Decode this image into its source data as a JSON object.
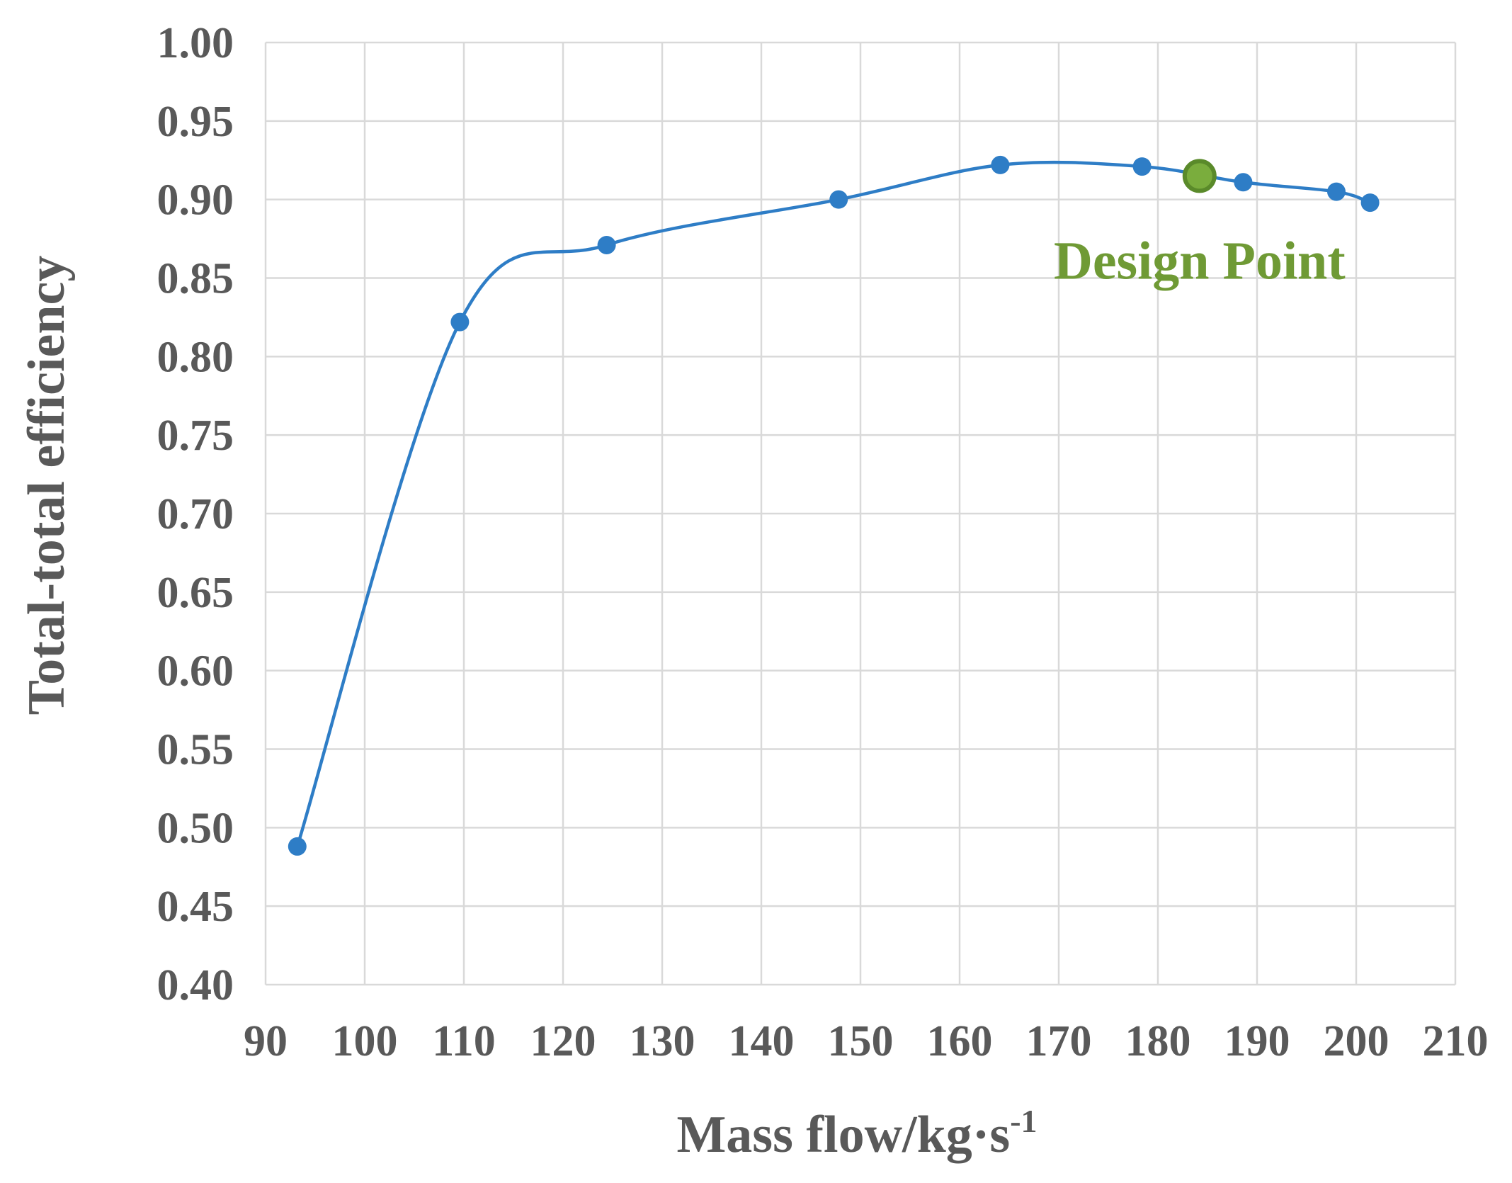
{
  "chart_data": {
    "type": "line",
    "title": "",
    "xlabel_main": "Mass flow/kg·s",
    "xlabel_sup": "-1",
    "ylabel": "Total-total efficiency",
    "xlim": [
      90,
      210
    ],
    "ylim": [
      0.4,
      1.0
    ],
    "x_ticks": [
      90,
      100,
      110,
      120,
      130,
      140,
      150,
      160,
      170,
      180,
      190,
      200,
      210
    ],
    "y_ticks": [
      0.4,
      0.45,
      0.5,
      0.55,
      0.6,
      0.65,
      0.7,
      0.75,
      0.8,
      0.85,
      0.9,
      0.95,
      1.0
    ],
    "x_tick_labels": [
      "90",
      "100",
      "110",
      "120",
      "130",
      "140",
      "150",
      "160",
      "170",
      "180",
      "190",
      "200",
      "210"
    ],
    "y_tick_labels": [
      "0.40",
      "0.45",
      "0.50",
      "0.55",
      "0.60",
      "0.65",
      "0.70",
      "0.75",
      "0.80",
      "0.85",
      "0.90",
      "0.95",
      "1.00"
    ],
    "grid": true,
    "smooth": true,
    "series": [
      {
        "color": "#2e7dc6",
        "points": [
          {
            "x": 93.2,
            "y": 0.488
          },
          {
            "x": 109.6,
            "y": 0.822
          },
          {
            "x": 124.4,
            "y": 0.871
          },
          {
            "x": 147.8,
            "y": 0.9
          },
          {
            "x": 164.1,
            "y": 0.922
          },
          {
            "x": 178.4,
            "y": 0.921
          },
          {
            "x": 188.6,
            "y": 0.911
          },
          {
            "x": 198.0,
            "y": 0.905
          },
          {
            "x": 201.4,
            "y": 0.898
          }
        ]
      }
    ],
    "design_point": {
      "x": 184.2,
      "y": 0.915,
      "label": "Design Point",
      "color": "#7aad3d",
      "edge_color": "#5a8a2a",
      "label_color": "#6f9a35"
    }
  }
}
